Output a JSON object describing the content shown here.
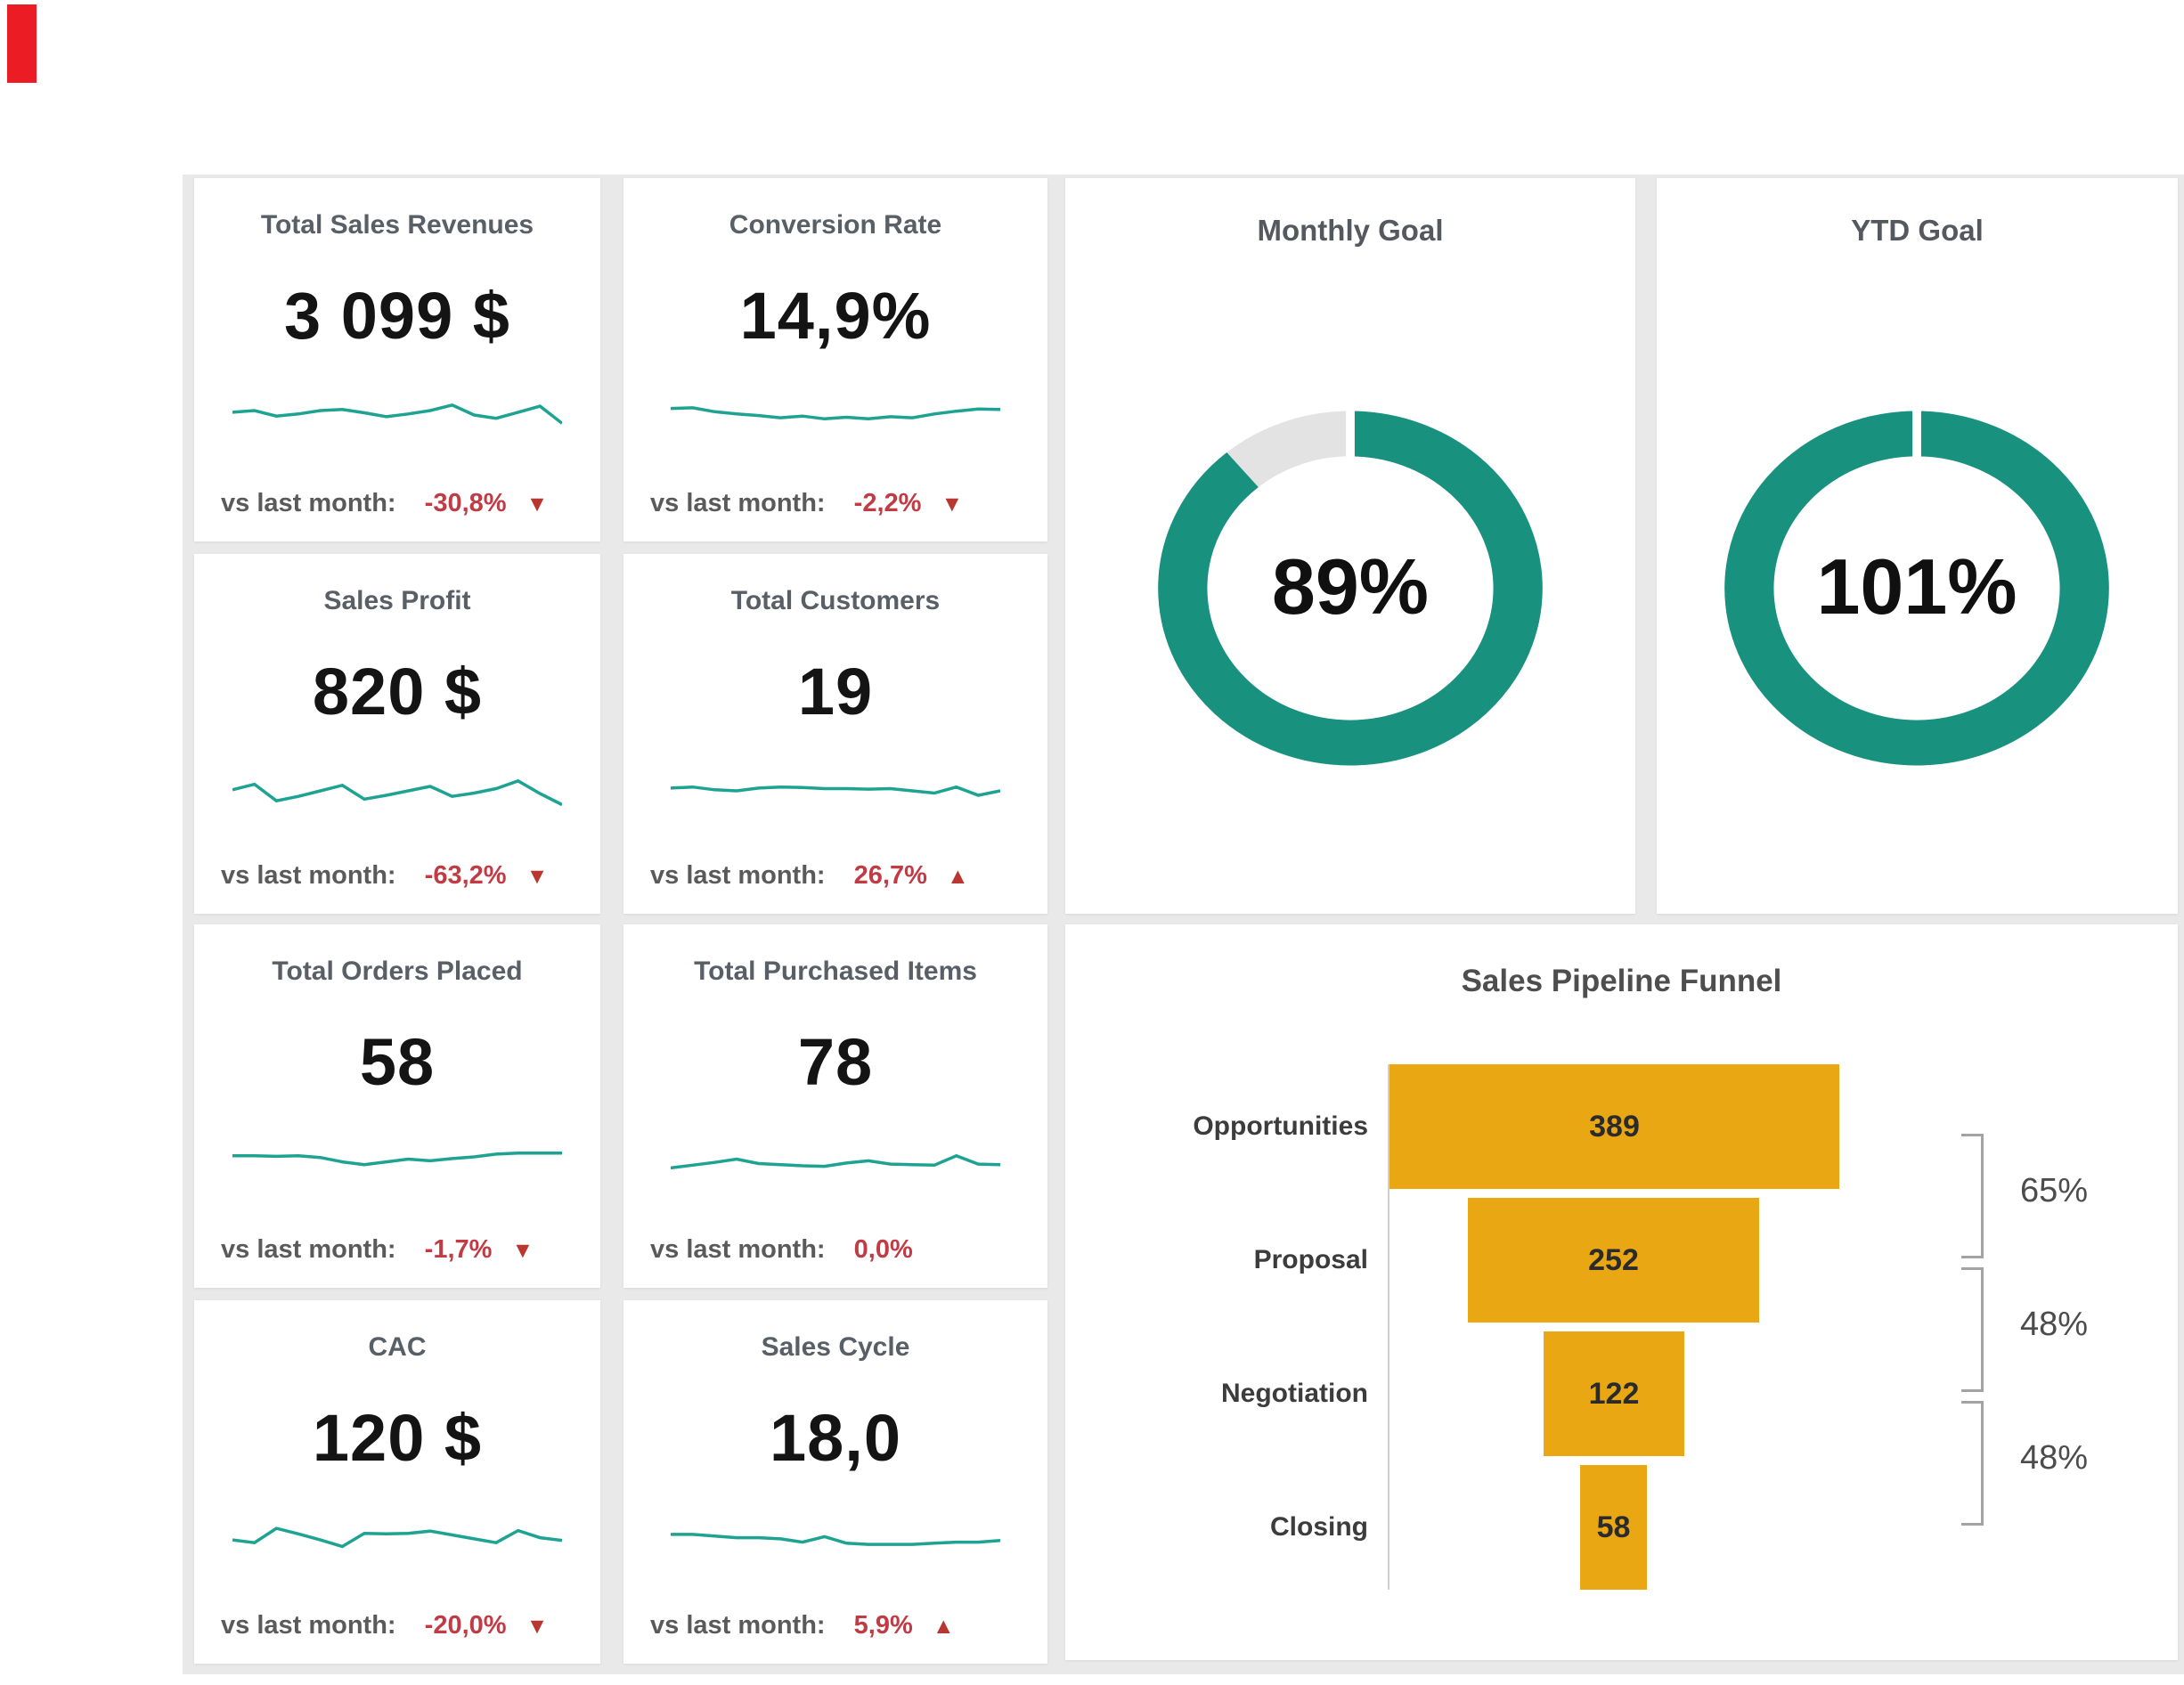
{
  "colors": {
    "teal": "#18917F",
    "sparkline_teal": "#1EA392",
    "funnel_amber": "#E8A713",
    "delta_red": "#C13B45",
    "title_gray": "#585F66",
    "donut_track_gray": "#E3E3E3",
    "gutter_gray": "#E9E9E9",
    "corner_marker_red": "#EC1C24"
  },
  "kpi": {
    "delta_prefix": "vs last month:",
    "cards": [
      {
        "title": "Total Sales Revenues",
        "value": "3 099 $",
        "delta": "-30,8%",
        "direction": "down",
        "spark": [
          55,
          58,
          48,
          52,
          58,
          60,
          54,
          47,
          52,
          58,
          68,
          50,
          44,
          55,
          66,
          35
        ]
      },
      {
        "title": "Conversion Rate",
        "value": "14,9%",
        "delta": "-2,2%",
        "direction": "down",
        "spark": [
          62,
          63,
          56,
          52,
          49,
          45,
          48,
          43,
          46,
          43,
          47,
          45,
          52,
          57,
          61,
          60
        ]
      },
      {
        "title": "Sales Profit",
        "value": "820 $",
        "delta": "-63,2%",
        "direction": "down",
        "spark": [
          52,
          62,
          32,
          40,
          50,
          60,
          35,
          42,
          50,
          58,
          40,
          46,
          54,
          68,
          45,
          25
        ]
      },
      {
        "title": "Total Customers",
        "value": "19",
        "delta": "26,7%",
        "direction": "up",
        "spark": [
          55,
          57,
          52,
          50,
          55,
          57,
          56,
          54,
          54,
          53,
          54,
          50,
          46,
          57,
          42,
          50
        ]
      },
      {
        "title": "Total Orders Placed",
        "value": "58",
        "delta": "-1,7%",
        "direction": "down",
        "spark": [
          60,
          60,
          59,
          60,
          57,
          49,
          44,
          49,
          54,
          51,
          55,
          58,
          63,
          65,
          65,
          65
        ]
      },
      {
        "title": "Total Purchased Items",
        "value": "78",
        "delta": "0,0%",
        "direction": "none",
        "spark": [
          38,
          43,
          48,
          54,
          46,
          44,
          42,
          41,
          47,
          51,
          45,
          44,
          43,
          60,
          45,
          44
        ]
      },
      {
        "title": "CAC",
        "value": "120 $",
        "delta": "-20,0%",
        "direction": "down",
        "spark": [
          45,
          40,
          66,
          56,
          45,
          33,
          57,
          56,
          57,
          61,
          54,
          47,
          40,
          62,
          49,
          44
        ]
      },
      {
        "title": "Sales Cycle",
        "value": "18,0",
        "delta": "5,9%",
        "direction": "up",
        "spark": [
          55,
          55,
          52,
          49,
          49,
          47,
          41,
          51,
          39,
          37,
          37,
          37,
          39,
          41,
          41,
          44
        ]
      }
    ]
  },
  "gauges": [
    {
      "title": "Monthly Goal",
      "percent": 89,
      "label": "89%"
    },
    {
      "title": "YTD Goal",
      "percent": 101,
      "label": "101%"
    }
  ],
  "funnel": {
    "title": "Sales Pipeline Funnel",
    "stages": [
      {
        "label": "Opportunities",
        "value": 389
      },
      {
        "label": "Proposal",
        "value": 252
      },
      {
        "label": "Negotiation",
        "value": 122
      },
      {
        "label": "Closing",
        "value": 58
      }
    ],
    "conversion_rates": [
      "65%",
      "48%",
      "48%"
    ]
  },
  "chart_data": [
    {
      "type": "pie",
      "title": "Monthly Goal",
      "labels": [
        "achieved",
        "remaining"
      ],
      "values": [
        89,
        11
      ],
      "center_label": "89%",
      "colors": [
        "#18917F",
        "#E3E3E3"
      ],
      "style": "donut, starts at 12 o'clock clockwise, white gap at top"
    },
    {
      "type": "pie",
      "title": "YTD Goal",
      "labels": [
        "achieved"
      ],
      "values": [
        101
      ],
      "center_label": "101%",
      "colors": [
        "#18917F"
      ],
      "style": "donut, full teal ring (>=100%), white gap at top"
    },
    {
      "type": "bar",
      "title": "Sales Pipeline Funnel",
      "orientation": "horizontal centered funnel",
      "categories": [
        "Opportunities",
        "Proposal",
        "Negotiation",
        "Closing"
      ],
      "values": [
        389,
        252,
        122,
        58
      ],
      "stage_conversion_labels": [
        "65%",
        "48%",
        "48%"
      ],
      "bar_color": "#E8A713",
      "legend": "none",
      "grid": "single vertical axis line at left of bars"
    },
    {
      "type": "line",
      "title": "KPI sparklines (unlabeled 16-point trends, values are relative estimates 0-100)",
      "series": [
        {
          "name": "Total Sales Revenues",
          "values": [
            55,
            58,
            48,
            52,
            58,
            60,
            54,
            47,
            52,
            58,
            68,
            50,
            44,
            55,
            66,
            35
          ]
        },
        {
          "name": "Conversion Rate",
          "values": [
            62,
            63,
            56,
            52,
            49,
            45,
            48,
            43,
            46,
            43,
            47,
            45,
            52,
            57,
            61,
            60
          ]
        },
        {
          "name": "Sales Profit",
          "values": [
            52,
            62,
            32,
            40,
            50,
            60,
            35,
            42,
            50,
            58,
            40,
            46,
            54,
            68,
            45,
            25
          ]
        },
        {
          "name": "Total Customers",
          "values": [
            55,
            57,
            52,
            50,
            55,
            57,
            56,
            54,
            54,
            53,
            54,
            50,
            46,
            57,
            42,
            50
          ]
        },
        {
          "name": "Total Orders Placed",
          "values": [
            60,
            60,
            59,
            60,
            57,
            49,
            44,
            49,
            54,
            51,
            55,
            58,
            63,
            65,
            65,
            65
          ]
        },
        {
          "name": "Total Purchased Items",
          "values": [
            38,
            43,
            48,
            54,
            46,
            44,
            42,
            41,
            47,
            51,
            45,
            44,
            43,
            60,
            45,
            44
          ]
        },
        {
          "name": "CAC",
          "values": [
            45,
            40,
            66,
            56,
            45,
            33,
            57,
            56,
            57,
            61,
            54,
            47,
            40,
            62,
            49,
            44
          ]
        },
        {
          "name": "Sales Cycle",
          "values": [
            55,
            55,
            52,
            49,
            49,
            47,
            41,
            51,
            39,
            37,
            37,
            37,
            39,
            41,
            41,
            44
          ]
        }
      ],
      "line_color": "#1EA392"
    }
  ]
}
